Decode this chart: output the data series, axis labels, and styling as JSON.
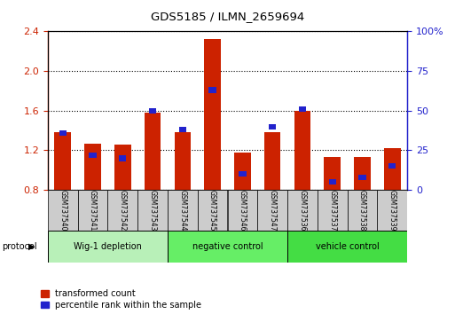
{
  "title": "GDS5185 / ILMN_2659694",
  "samples": [
    "GSM737540",
    "GSM737541",
    "GSM737542",
    "GSM737543",
    "GSM737544",
    "GSM737545",
    "GSM737546",
    "GSM737547",
    "GSM737536",
    "GSM737537",
    "GSM737538",
    "GSM737539"
  ],
  "red_values": [
    1.38,
    1.27,
    1.26,
    1.58,
    1.38,
    2.32,
    1.18,
    1.38,
    1.6,
    1.13,
    1.13,
    1.22
  ],
  "blue_pct": [
    36,
    22,
    20,
    50,
    38,
    63,
    10,
    40,
    51,
    5,
    8,
    15
  ],
  "ylim_left": [
    0.8,
    2.4
  ],
  "ylim_right": [
    0,
    100
  ],
  "yticks_left": [
    0.8,
    1.2,
    1.6,
    2.0,
    2.4
  ],
  "yticks_right": [
    0,
    25,
    50,
    75,
    100
  ],
  "ytick_labels_right": [
    "0",
    "25",
    "50",
    "75",
    "100%"
  ],
  "groups": [
    {
      "label": "Wig-1 depletion",
      "start": 0,
      "end": 3
    },
    {
      "label": "negative control",
      "start": 4,
      "end": 7
    },
    {
      "label": "vehicle control",
      "start": 8,
      "end": 11
    }
  ],
  "group_colors": [
    "#b8f0b8",
    "#66ee66",
    "#44dd44"
  ],
  "bar_color": "#cc2200",
  "blue_color": "#2222cc",
  "bar_width": 0.55,
  "bg_color": "#ffffff",
  "tick_color_left": "#cc2200",
  "tick_color_right": "#2222cc",
  "xlabel_area_color": "#c8c8c8",
  "legend_red_label": "transformed count",
  "legend_blue_label": "percentile rank within the sample",
  "protocol_label": "protocol"
}
